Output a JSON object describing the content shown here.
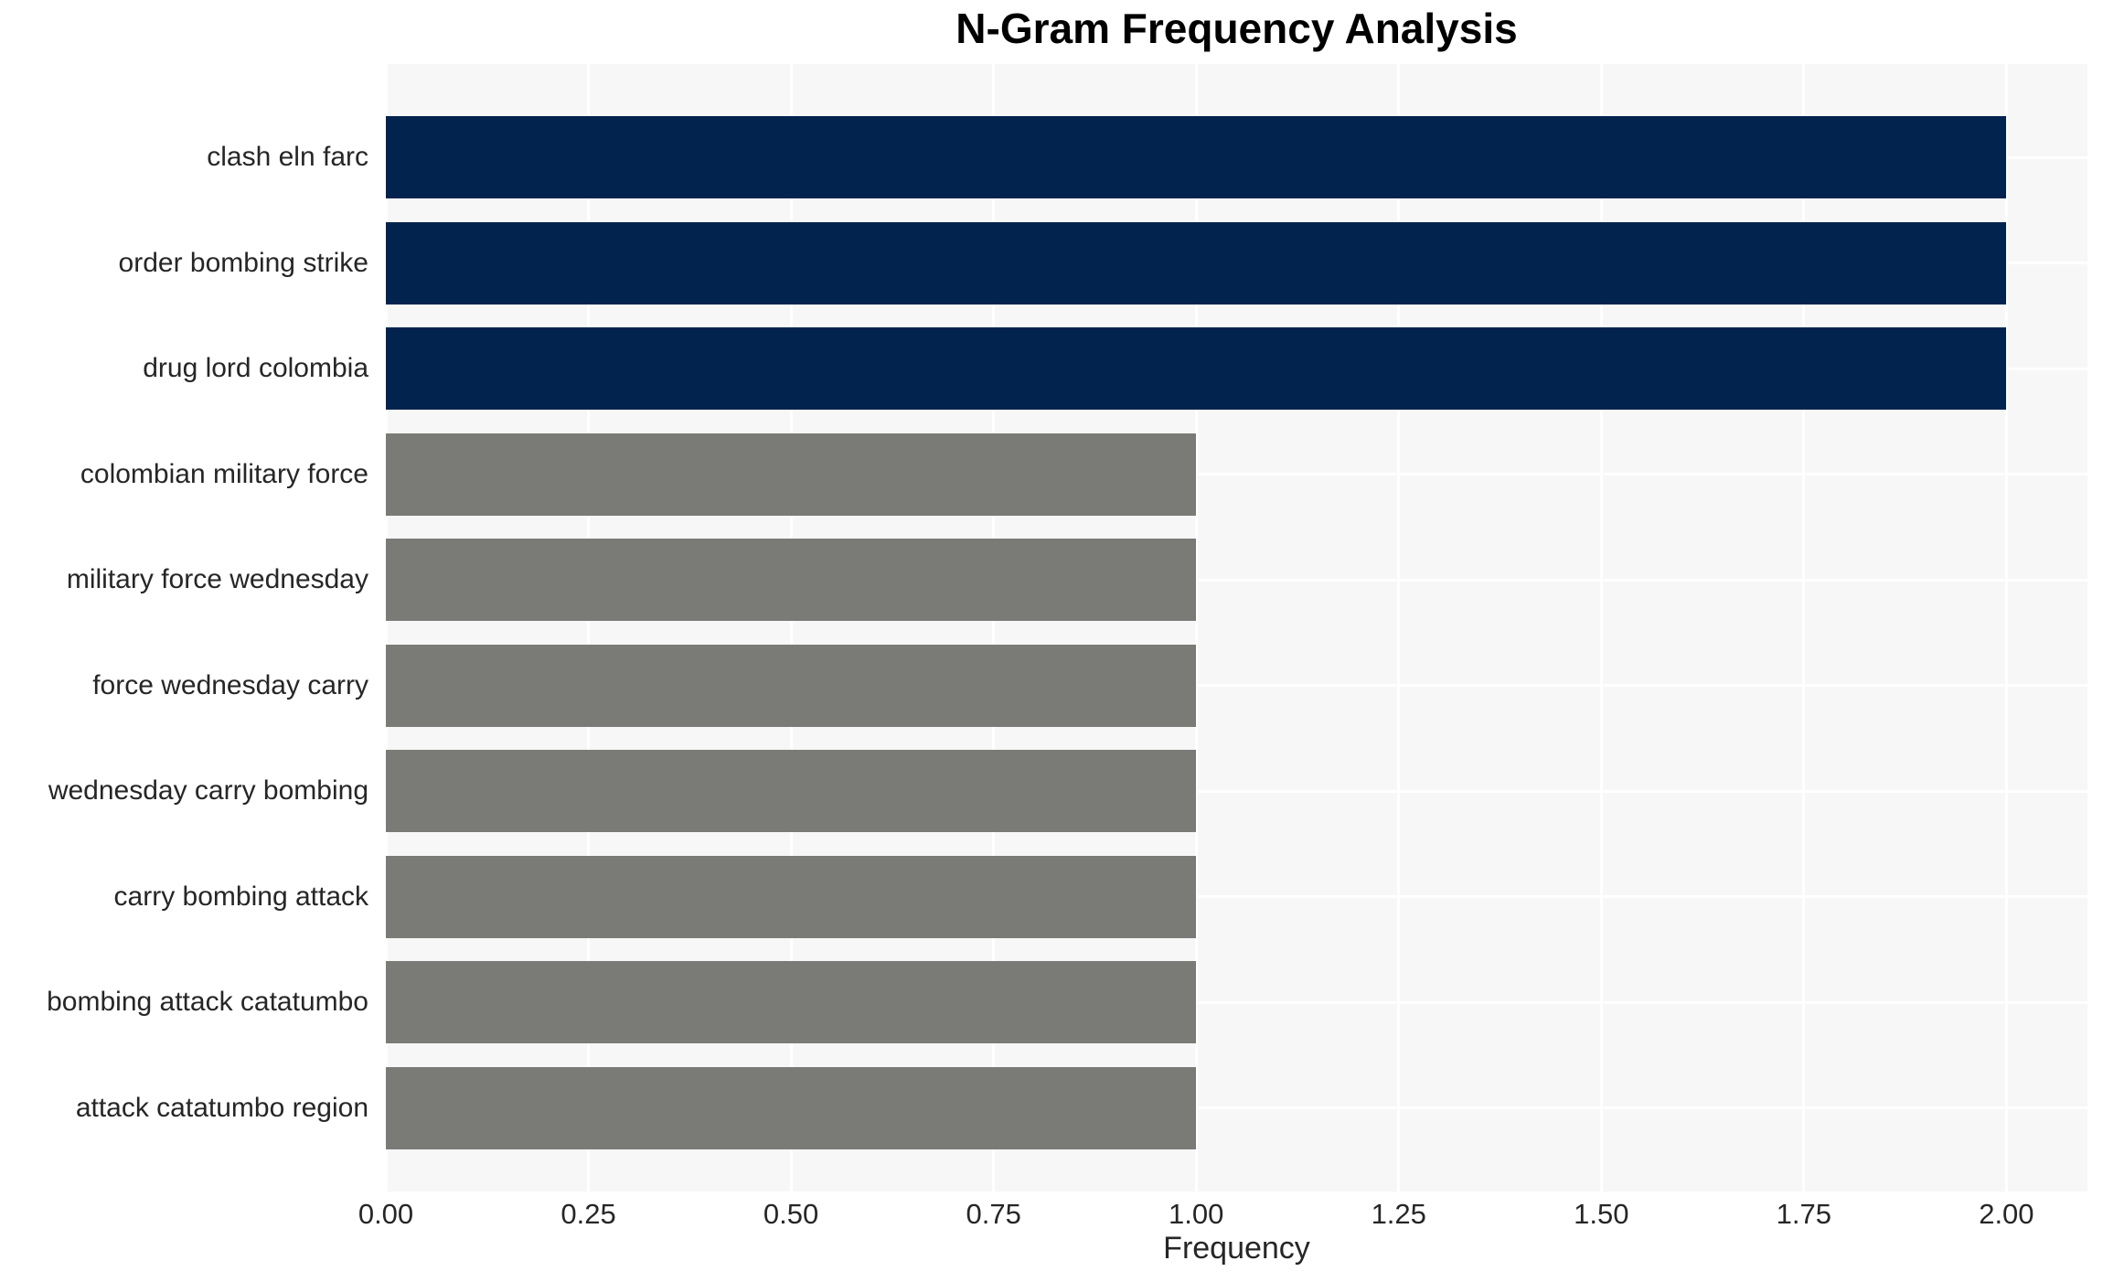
{
  "chart_data": {
    "type": "bar",
    "orientation": "horizontal",
    "title": "N-Gram Frequency Analysis",
    "xlabel": "Frequency",
    "ylabel": "",
    "categories": [
      "clash eln farc",
      "order bombing strike",
      "drug lord colombia",
      "colombian military force",
      "military force wednesday",
      "force wednesday carry",
      "wednesday carry bombing",
      "carry bombing attack",
      "bombing attack catatumbo",
      "attack catatumbo region"
    ],
    "values": [
      2,
      2,
      2,
      1,
      1,
      1,
      1,
      1,
      1,
      1
    ],
    "bar_colors": [
      "#02234d",
      "#02234d",
      "#02234d",
      "#7a7a77",
      "#7a7a77",
      "#7a7a77",
      "#7a7a77",
      "#7a7a77",
      "#7a7a77",
      "#7a7a77"
    ],
    "xlim": [
      0,
      2.1
    ],
    "xticks": [
      0,
      0.25,
      0.5,
      0.75,
      1.0,
      1.25,
      1.5,
      1.75,
      2.0
    ],
    "xtick_labels": [
      "0.00",
      "0.25",
      "0.50",
      "0.75",
      "1.00",
      "1.25",
      "1.50",
      "1.75",
      "2.00"
    ],
    "grid": true,
    "legend": false,
    "colors": {
      "highlight_bar": "#02234d",
      "normal_bar": "#7a7a77",
      "plot_background": "#f7f7f7",
      "figure_background": "#ffffff",
      "gridline": "#ffffff",
      "tick_text": "#262626",
      "title_text": "#000000"
    }
  }
}
